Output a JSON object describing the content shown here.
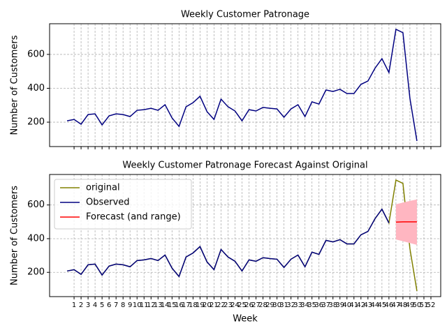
{
  "chart_data": [
    {
      "type": "line",
      "title": "Weekly Customer Patronage",
      "ylabel": "Number of Customers",
      "x": [
        0,
        1,
        2,
        3,
        4,
        5,
        6,
        7,
        8,
        9,
        10,
        11,
        12,
        13,
        14,
        15,
        16,
        17,
        18,
        19,
        20,
        21,
        22,
        23,
        24,
        25,
        26,
        27,
        28,
        29,
        30,
        31,
        32,
        33,
        34,
        35,
        36,
        37,
        38,
        39,
        40,
        41,
        42,
        43,
        44,
        45,
        46,
        47,
        48,
        49,
        50
      ],
      "values": [
        208,
        216,
        188,
        245,
        249,
        184,
        237,
        249,
        245,
        233,
        270,
        274,
        282,
        270,
        303,
        225,
        175,
        291,
        315,
        353,
        262,
        216,
        336,
        291,
        266,
        208,
        274,
        266,
        287,
        282,
        278,
        229,
        278,
        303,
        233,
        320,
        307,
        390,
        381,
        394,
        369,
        369,
        423,
        443,
        518,
        575,
        493,
        748,
        728,
        340,
        89
      ],
      "color": "#000080",
      "xlim": [
        -2.5,
        53.4
      ],
      "ylim": [
        56,
        781
      ],
      "xticks": [
        1,
        2,
        3,
        4,
        5,
        6,
        7,
        8,
        9,
        10,
        11,
        12,
        13,
        14,
        15,
        16,
        17,
        18,
        19,
        20,
        21,
        22,
        23,
        24,
        25,
        26,
        27,
        28,
        29,
        30,
        31,
        32,
        33,
        34,
        35,
        36,
        37,
        38,
        39,
        40,
        41,
        42,
        43,
        44,
        45,
        46,
        47,
        48,
        49,
        50,
        51,
        52
      ],
      "yticks": [
        200,
        400,
        600
      ],
      "grid": true,
      "show_xtick_labels": false
    },
    {
      "type": "line",
      "title": "Weekly Customer Patronage Forecast Against Original",
      "ylabel": "Number of Customers",
      "xlabel": "Week",
      "x": [
        0,
        1,
        2,
        3,
        4,
        5,
        6,
        7,
        8,
        9,
        10,
        11,
        12,
        13,
        14,
        15,
        16,
        17,
        18,
        19,
        20,
        21,
        22,
        23,
        24,
        25,
        26,
        27,
        28,
        29,
        30,
        31,
        32,
        33,
        34,
        35,
        36,
        37,
        38,
        39,
        40,
        41,
        42,
        43,
        44,
        45,
        46,
        47,
        48,
        49,
        50
      ],
      "series": [
        {
          "name": "original",
          "color": "#808000",
          "values": [
            208,
            216,
            188,
            245,
            249,
            184,
            237,
            249,
            245,
            233,
            270,
            274,
            282,
            270,
            303,
            225,
            175,
            291,
            315,
            353,
            262,
            216,
            336,
            291,
            266,
            208,
            274,
            266,
            287,
            282,
            278,
            229,
            278,
            303,
            233,
            320,
            307,
            390,
            381,
            394,
            369,
            369,
            423,
            443,
            518,
            575,
            493,
            748,
            728,
            340,
            89
          ]
        },
        {
          "name": "Observed",
          "color": "#000080",
          "values": [
            208,
            216,
            188,
            245,
            249,
            184,
            237,
            249,
            245,
            233,
            270,
            274,
            282,
            270,
            303,
            225,
            175,
            291,
            315,
            353,
            262,
            216,
            336,
            291,
            266,
            208,
            274,
            266,
            287,
            282,
            278,
            229,
            278,
            303,
            233,
            320,
            307,
            390,
            381,
            394,
            369,
            369,
            423,
            443,
            518,
            575,
            493,
            null,
            null,
            null,
            null
          ]
        },
        {
          "name": "Forecast (and range)",
          "color": "#ff0000",
          "band_color": "#ffb6c1",
          "values": [
            null,
            null,
            null,
            null,
            null,
            null,
            null,
            null,
            null,
            null,
            null,
            null,
            null,
            null,
            null,
            null,
            null,
            null,
            null,
            null,
            null,
            null,
            null,
            null,
            null,
            null,
            null,
            null,
            null,
            null,
            null,
            null,
            null,
            null,
            null,
            null,
            null,
            null,
            null,
            null,
            null,
            null,
            null,
            null,
            null,
            null,
            null,
            498,
            500,
            500,
            500
          ],
          "lower": [
            null,
            null,
            null,
            null,
            null,
            null,
            null,
            null,
            null,
            null,
            null,
            null,
            null,
            null,
            null,
            null,
            null,
            null,
            null,
            null,
            null,
            null,
            null,
            null,
            null,
            null,
            null,
            null,
            null,
            null,
            null,
            null,
            null,
            null,
            null,
            null,
            null,
            null,
            null,
            null,
            null,
            null,
            null,
            null,
            null,
            null,
            null,
            395,
            385,
            374,
            363
          ],
          "upper": [
            null,
            null,
            null,
            null,
            null,
            null,
            null,
            null,
            null,
            null,
            null,
            null,
            null,
            null,
            null,
            null,
            null,
            null,
            null,
            null,
            null,
            null,
            null,
            null,
            null,
            null,
            null,
            null,
            null,
            null,
            null,
            null,
            null,
            null,
            null,
            null,
            null,
            null,
            null,
            null,
            null,
            null,
            null,
            null,
            null,
            null,
            null,
            604,
            614,
            624,
            633
          ]
        }
      ],
      "xlim": [
        -2.5,
        53.4
      ],
      "ylim": [
        56,
        781
      ],
      "xticks": [
        1,
        2,
        3,
        4,
        5,
        6,
        7,
        8,
        9,
        10,
        11,
        12,
        13,
        14,
        15,
        16,
        17,
        18,
        19,
        20,
        21,
        22,
        23,
        24,
        25,
        26,
        27,
        28,
        29,
        30,
        31,
        32,
        33,
        34,
        35,
        36,
        37,
        38,
        39,
        40,
        41,
        42,
        43,
        44,
        45,
        46,
        47,
        48,
        49,
        50,
        51,
        52
      ],
      "yticks": [
        200,
        400,
        600
      ],
      "grid": true,
      "show_xtick_labels": true,
      "legend": "upper left"
    }
  ]
}
